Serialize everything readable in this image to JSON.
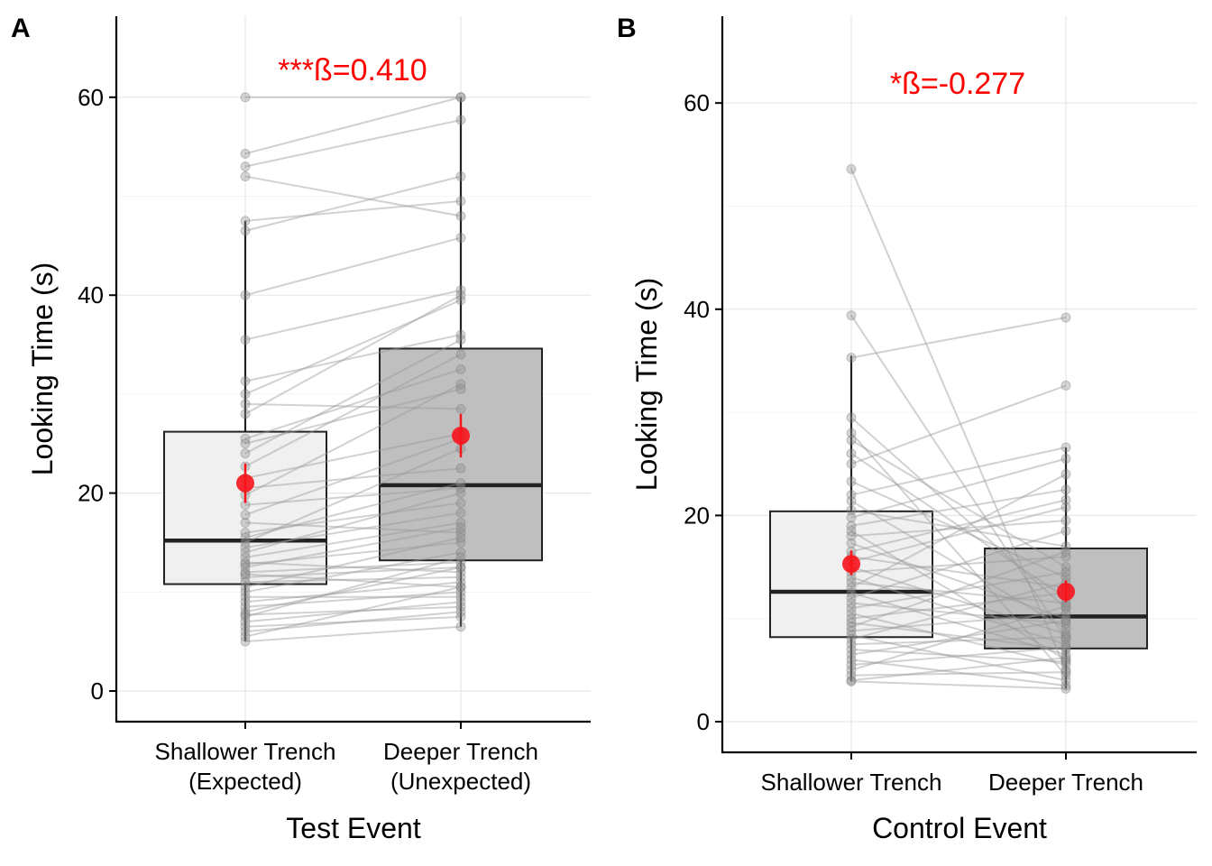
{
  "panels": [
    {
      "label": "A",
      "annotation": "***ß=0.410",
      "xlabel": "Test Event",
      "ylabel": "Looking Time (s)"
    },
    {
      "label": "B",
      "annotation": "*ß=-0.277",
      "xlabel": "Control Event",
      "ylabel": "Looking Time (s)"
    }
  ],
  "colors": {
    "annotation": "#ff0000",
    "mean_point": "#f8141c",
    "box_shallower": "#f0f0f0",
    "box_deeper": "#bfbfbf",
    "subject_lines": "#9a9a9a",
    "gridlines": "#e6e6e6"
  },
  "chart_data": [
    {
      "type": "box",
      "title": "",
      "xlabel": "Test Event",
      "ylabel": "Looking Time (s)",
      "ylim": [
        -3,
        68
      ],
      "yticks": [
        0,
        20,
        40,
        60
      ],
      "grid": true,
      "legend": "none",
      "categories": [
        "Shallower Trench\n(Expected)",
        "Deeper Trench\n(Unexpected)"
      ],
      "boxes": [
        {
          "q1": 10.8,
          "median": 15.2,
          "q3": 26.2,
          "whisker_low": 5.0,
          "whisker_high": 47.5,
          "mean": 21.0,
          "mean_low": 19.0,
          "mean_high": 23.0
        },
        {
          "q1": 13.2,
          "median": 20.8,
          "q3": 34.6,
          "whisker_low": 6.5,
          "whisker_high": 60.0,
          "mean": 25.8,
          "mean_low": 23.6,
          "mean_high": 28.0
        }
      ],
      "paired": [
        [
          60,
          60
        ],
        [
          54.3,
          60
        ],
        [
          53.0,
          57.7
        ],
        [
          52.0,
          48.0
        ],
        [
          47.5,
          49.5
        ],
        [
          46.5,
          52.0
        ],
        [
          40.0,
          45.8
        ],
        [
          35.5,
          40.5
        ],
        [
          31.3,
          36.0
        ],
        [
          30.0,
          39.5
        ],
        [
          29.0,
          28.5
        ],
        [
          28.0,
          40.0
        ],
        [
          25.5,
          32.5
        ],
        [
          25.0,
          30.5
        ],
        [
          24.0,
          35.5
        ],
        [
          22.7,
          34.0
        ],
        [
          21.5,
          26.0
        ],
        [
          20.5,
          22.5
        ],
        [
          19.8,
          31.0
        ],
        [
          18.8,
          20.5
        ],
        [
          17.8,
          25.5
        ],
        [
          17.0,
          16.0
        ],
        [
          16.0,
          19.0
        ],
        [
          15.5,
          21.0
        ],
        [
          15.0,
          24.5
        ],
        [
          14.5,
          18.0
        ],
        [
          14.0,
          20.0
        ],
        [
          13.5,
          17.0
        ],
        [
          13.0,
          12.0
        ],
        [
          12.8,
          15.0
        ],
        [
          12.5,
          16.5
        ],
        [
          12.0,
          13.0
        ],
        [
          11.8,
          10.5
        ],
        [
          11.5,
          12.5
        ],
        [
          11.0,
          11.5
        ],
        [
          10.5,
          15.5
        ],
        [
          10.0,
          14.0
        ],
        [
          9.5,
          9.5
        ],
        [
          9.0,
          11.0
        ],
        [
          8.5,
          10.0
        ],
        [
          8.0,
          12.5
        ],
        [
          7.7,
          8.5
        ],
        [
          7.5,
          13.5
        ],
        [
          7.0,
          9.0
        ],
        [
          6.5,
          7.5
        ],
        [
          6.0,
          8.0
        ],
        [
          5.5,
          10.5
        ],
        [
          5.0,
          6.5
        ]
      ]
    },
    {
      "type": "box",
      "title": "",
      "xlabel": "Control Event",
      "ylabel": "Looking Time (s)",
      "ylim": [
        -3,
        68
      ],
      "yticks": [
        0,
        20,
        40,
        60
      ],
      "grid": true,
      "legend": "none",
      "categories": [
        "Shallower Trench",
        "Deeper Trench"
      ],
      "boxes": [
        {
          "q1": 8.2,
          "median": 12.6,
          "q3": 20.4,
          "whisker_low": 3.9,
          "whisker_high": 35.5,
          "mean": 15.3,
          "mean_low": 14.2,
          "mean_high": 16.6
        },
        {
          "q1": 7.1,
          "median": 10.2,
          "q3": 16.8,
          "whisker_low": 3.2,
          "whisker_high": 26.6,
          "mean": 12.6,
          "mean_low": 11.6,
          "mean_high": 13.7
        }
      ],
      "paired": [
        [
          53.6,
          5.0
        ],
        [
          39.4,
          8.0
        ],
        [
          35.3,
          39.2
        ],
        [
          29.5,
          11.0
        ],
        [
          28.0,
          4.5
        ],
        [
          27.3,
          15.0
        ],
        [
          26.0,
          12.0
        ],
        [
          25.0,
          32.6
        ],
        [
          23.3,
          14.0
        ],
        [
          22.0,
          26.6
        ],
        [
          21.4,
          9.0
        ],
        [
          20.5,
          17.0
        ],
        [
          19.8,
          25.5
        ],
        [
          19.0,
          22.5
        ],
        [
          18.5,
          6.0
        ],
        [
          18.0,
          19.5
        ],
        [
          17.3,
          10.0
        ],
        [
          16.5,
          21.5
        ],
        [
          16.0,
          13.0
        ],
        [
          15.5,
          20.8
        ],
        [
          15.0,
          8.5
        ],
        [
          14.5,
          16.0
        ],
        [
          14.0,
          7.5
        ],
        [
          13.5,
          11.5
        ],
        [
          13.0,
          24.0
        ],
        [
          12.5,
          6.5
        ],
        [
          12.0,
          18.5
        ],
        [
          11.5,
          9.5
        ],
        [
          11.0,
          14.5
        ],
        [
          10.5,
          5.5
        ],
        [
          10.0,
          12.5
        ],
        [
          9.6,
          7.0
        ],
        [
          9.2,
          16.5
        ],
        [
          8.8,
          10.5
        ],
        [
          8.4,
          4.0
        ],
        [
          8.0,
          13.5
        ],
        [
          7.5,
          8.2
        ],
        [
          7.0,
          5.8
        ],
        [
          6.5,
          9.8
        ],
        [
          6.0,
          3.5
        ],
        [
          5.5,
          7.2
        ],
        [
          5.0,
          11.2
        ],
        [
          4.5,
          4.8
        ],
        [
          4.0,
          6.2
        ],
        [
          3.9,
          3.2
        ]
      ]
    }
  ]
}
